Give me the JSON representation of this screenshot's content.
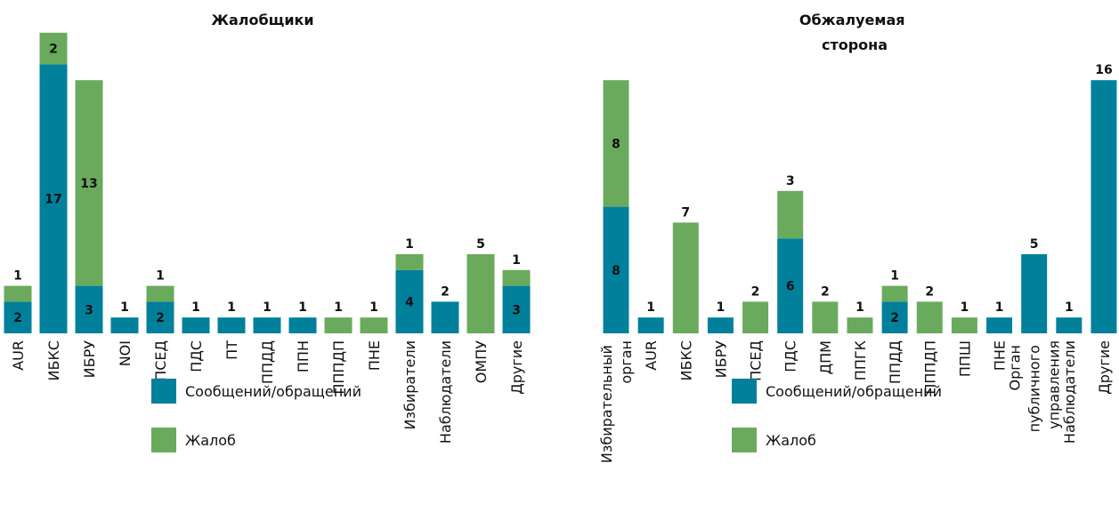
{
  "chart_data": [
    {
      "type": "stacked_bar",
      "title": "Жалобщики",
      "categories": [
        "AUR",
        "ИБКС",
        "ИБРУ",
        "NOI",
        "ПСЕД",
        "ПДС",
        "ПТ",
        "ППДД",
        "ППН",
        "ПППДП",
        "ПНЕ",
        "Избиратели",
        "Наблюдатели",
        "ОМПУ",
        "Другие"
      ],
      "series": [
        {
          "name": "Сообщений/обращений",
          "color": "#00809b",
          "values": [
            2,
            17,
            3,
            1,
            2,
            1,
            1,
            1,
            1,
            null,
            null,
            4,
            2,
            null,
            3
          ]
        },
        {
          "name": "Жалоб",
          "color": "#6aaa5c",
          "values": [
            1,
            2,
            13,
            null,
            1,
            null,
            null,
            null,
            null,
            1,
            1,
            1,
            null,
            5,
            1
          ]
        }
      ]
    },
    {
      "type": "stacked_bar",
      "title": "Обжалуемая сторона",
      "categories": [
        "Избирательный орган",
        "AUR",
        "ИБКС",
        "ИБРУ",
        "ПСЕД",
        "ПДС",
        "ДПМ",
        "ППГК",
        "ППДД",
        "ПППДП",
        "ППШ",
        "ПНЕ",
        "Орган публичного управления",
        "Наблюдатели",
        "Другие"
      ],
      "series": [
        {
          "name": "Сообщений/обращений",
          "color": "#00809b",
          "values": [
            8,
            1,
            null,
            1,
            null,
            6,
            null,
            null,
            2,
            null,
            null,
            1,
            5,
            1,
            16
          ]
        },
        {
          "name": "Жалоб",
          "color": "#6aaa5c",
          "values": [
            8,
            null,
            7,
            null,
            2,
            3,
            2,
            1,
            1,
            2,
            1,
            null,
            null,
            null,
            null
          ]
        }
      ]
    }
  ]
}
